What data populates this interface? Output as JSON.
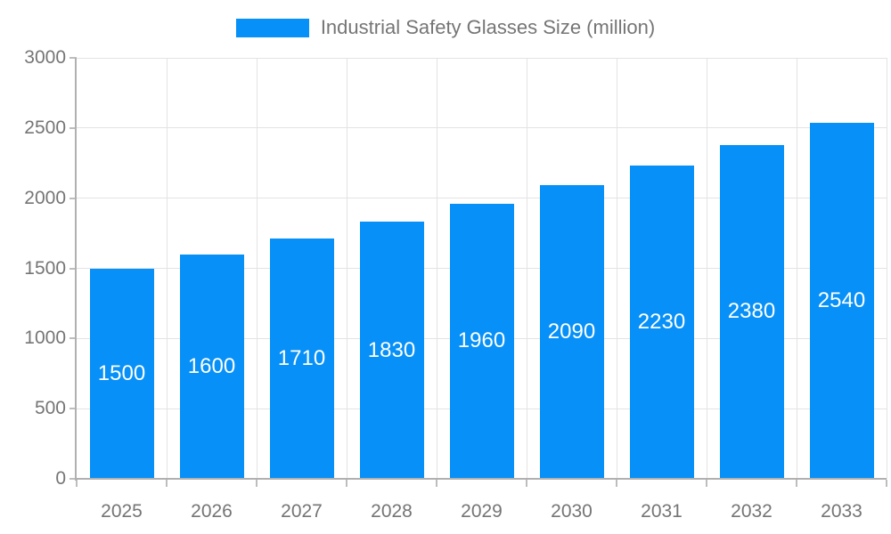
{
  "legend": {
    "label": "Industrial Safety Glasses Size (million)"
  },
  "colors": {
    "bar": "#0790f7",
    "grid": "#e3e3e3",
    "axis": "#b0b0b0",
    "tick": "#bdbdbd",
    "label_text": "#757575",
    "bar_label": "#ffffff"
  },
  "chart_data": {
    "type": "bar",
    "title": "Industrial Safety Glasses Size (million)",
    "categories": [
      "2025",
      "2026",
      "2027",
      "2028",
      "2029",
      "2030",
      "2031",
      "2032",
      "2033"
    ],
    "values": [
      1500,
      1600,
      1710,
      1830,
      1960,
      2090,
      2230,
      2380,
      2540
    ],
    "series": [
      {
        "name": "Industrial Safety Glasses Size (million)",
        "values": [
          1500,
          1600,
          1710,
          1830,
          1960,
          2090,
          2230,
          2380,
          2540
        ]
      }
    ],
    "xlabel": "",
    "ylabel": "",
    "ylim": [
      0,
      3000
    ],
    "yticks": [
      0,
      500,
      1000,
      1500,
      2000,
      2500,
      3000
    ],
    "grid": true,
    "legend_position": "top",
    "bar_value_labels": "inside-center"
  }
}
